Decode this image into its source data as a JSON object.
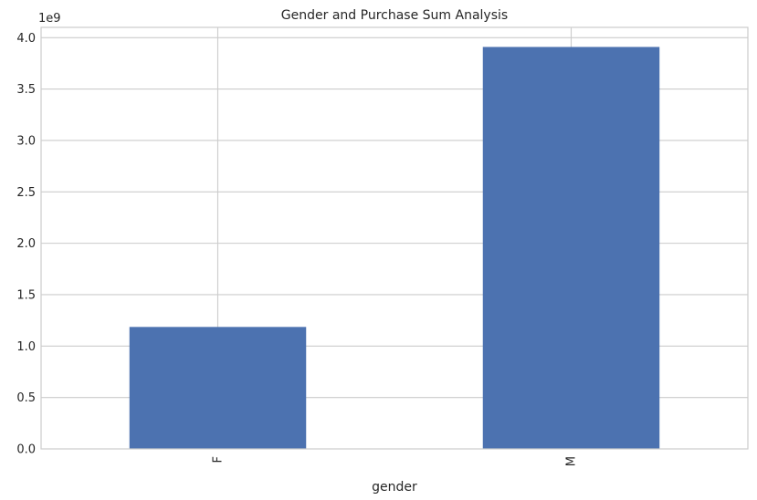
{
  "chart_data": {
    "type": "bar",
    "title": "Gender and Purchase Sum Analysis",
    "xlabel": "gender",
    "ylabel": "",
    "categories": [
      "F",
      "M"
    ],
    "values": [
      1186232642,
      3909580100
    ],
    "ylim": [
      0,
      4100000000
    ],
    "y_ticks": [
      0,
      500000000,
      1000000000,
      1500000000,
      2000000000,
      2500000000,
      3000000000,
      3500000000,
      4000000000
    ],
    "y_tick_labels": [
      "0.0",
      "0.5",
      "1.0",
      "1.5",
      "2.0",
      "2.5",
      "3.0",
      "3.5",
      "4.0"
    ],
    "y_offset_label": "1e9",
    "x_tick_rotation": "vertical",
    "grid": true,
    "bar_color": "#4C72B0",
    "grid_color": "#cccccc",
    "spine_color": "#cccccc"
  }
}
